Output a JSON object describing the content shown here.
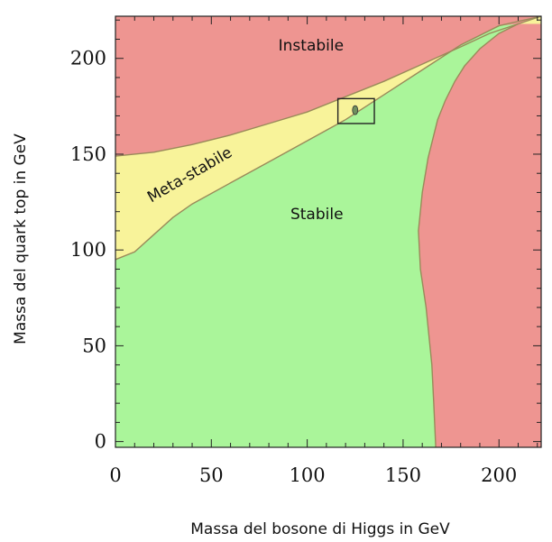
{
  "chart_data": {
    "type": "area",
    "title": "",
    "xlabel": "Massa del bosone di Higgs in GeV",
    "ylabel": "Massa del quark top in GeV",
    "xlim": [
      0,
      222
    ],
    "ylim": [
      -3,
      222
    ],
    "x_ticks": [
      0,
      50,
      100,
      150,
      200
    ],
    "y_ticks": [
      0,
      50,
      100,
      150,
      200
    ],
    "grid": false,
    "regions": [
      {
        "name": "Instabile",
        "color": "#ee9591",
        "label_at": [
          102,
          204
        ]
      },
      {
        "name": "Meta-stabile",
        "color": "#f8f39a",
        "label_at": [
          40,
          137
        ],
        "label_rotation_deg": -30
      },
      {
        "name": "Stabile",
        "color": "#aaf59a",
        "label_at": [
          105,
          116
        ]
      }
    ],
    "boundaries": {
      "instabile_meta": [
        [
          0,
          149
        ],
        [
          20,
          151
        ],
        [
          40,
          155
        ],
        [
          60,
          160
        ],
        [
          80,
          166
        ],
        [
          100,
          172
        ],
        [
          120,
          180
        ],
        [
          140,
          188
        ],
        [
          160,
          197
        ],
        [
          180,
          206
        ],
        [
          195,
          213
        ],
        [
          210,
          218
        ],
        [
          222,
          222
        ]
      ],
      "meta_stabile": [
        [
          0,
          95
        ],
        [
          10,
          99
        ],
        [
          20,
          108
        ],
        [
          30,
          117
        ],
        [
          40,
          124
        ],
        [
          60,
          135
        ],
        [
          80,
          146
        ],
        [
          100,
          157
        ],
        [
          120,
          168
        ],
        [
          140,
          181
        ],
        [
          160,
          194
        ],
        [
          180,
          207
        ],
        [
          200,
          217
        ],
        [
          222,
          222
        ]
      ],
      "stabile_right_instabile": [
        [
          210,
          218
        ],
        [
          200,
          213
        ],
        [
          190,
          205
        ],
        [
          182,
          196
        ],
        [
          177,
          188
        ],
        [
          172,
          178
        ],
        [
          168,
          168
        ],
        [
          163,
          148
        ],
        [
          160,
          130
        ],
        [
          158,
          110
        ],
        [
          159,
          90
        ],
        [
          162,
          70
        ],
        [
          165,
          40
        ],
        [
          166,
          20
        ],
        [
          167,
          -3
        ]
      ]
    },
    "highlight_box": {
      "x": [
        116,
        135
      ],
      "y": [
        166,
        179
      ],
      "marker": [
        125,
        173
      ]
    }
  }
}
